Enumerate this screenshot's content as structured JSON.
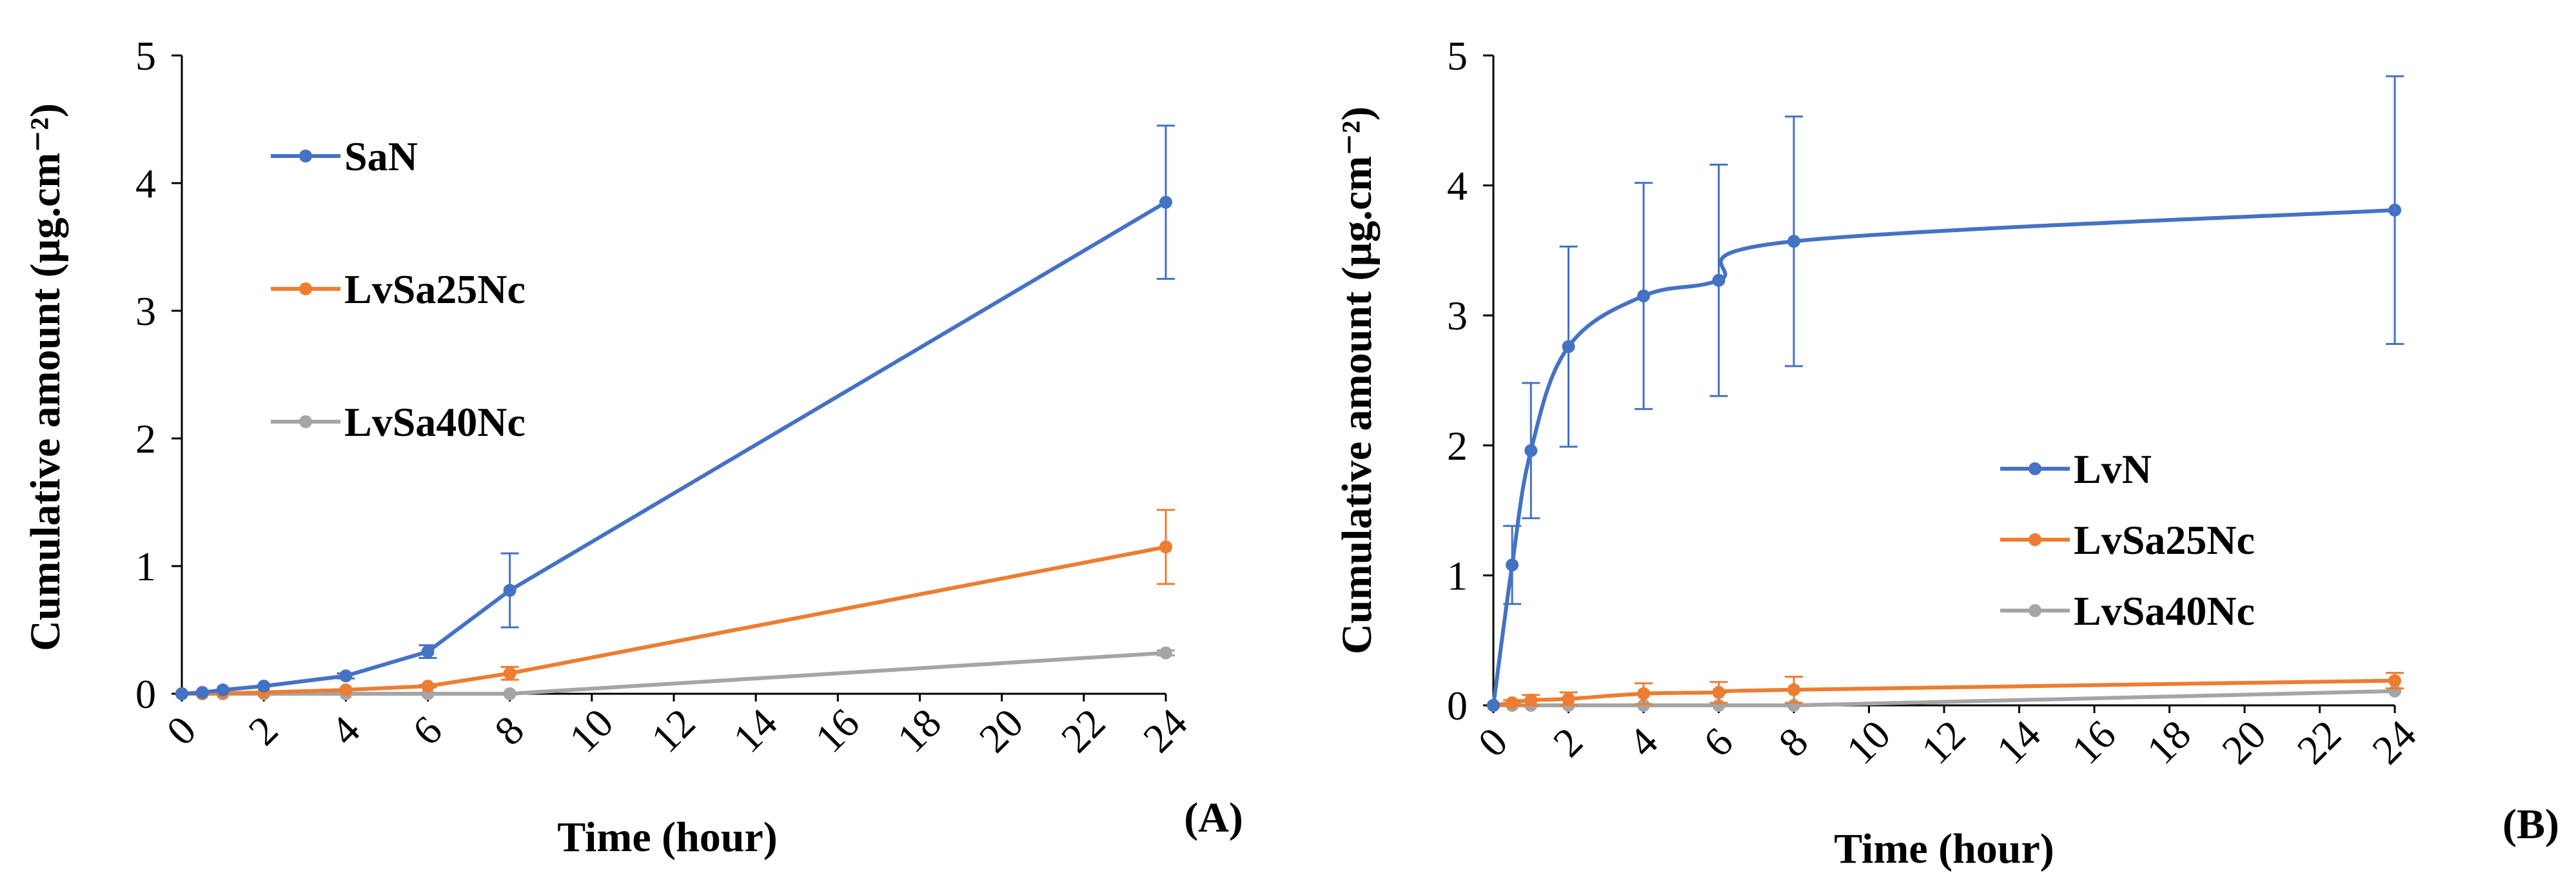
{
  "chart_data": [
    {
      "type": "line",
      "panel": "(A)",
      "xlabel": "Time (hour)",
      "ylabel": "Cumulative amount (µg.cm⁻²)",
      "xlim": [
        0,
        24
      ],
      "ylim": [
        0,
        5
      ],
      "xticks": [
        0,
        2,
        4,
        6,
        8,
        10,
        12,
        14,
        16,
        18,
        20,
        22,
        24
      ],
      "yticks": [
        0,
        1,
        2,
        3,
        4,
        5
      ],
      "grid": false,
      "legend_position": "top-left",
      "series": [
        {
          "name": "SaN",
          "color": "#4472c4",
          "x": [
            0,
            0.5,
            1,
            2,
            4,
            6,
            8,
            24
          ],
          "y": [
            0,
            0.01,
            0.03,
            0.06,
            0.14,
            0.33,
            0.81,
            3.85
          ],
          "err": [
            0,
            0,
            0,
            0,
            0.02,
            0.05,
            0.29,
            0.6
          ]
        },
        {
          "name": "LvSa25Nc",
          "color": "#ed7d31",
          "x": [
            0,
            0.5,
            1,
            2,
            4,
            6,
            8,
            24
          ],
          "y": [
            0,
            0,
            0.005,
            0.01,
            0.03,
            0.06,
            0.16,
            1.15
          ],
          "err": [
            0,
            0,
            0,
            0,
            0,
            0.01,
            0.05,
            0.29
          ]
        },
        {
          "name": "LvSa40Nc",
          "color": "#a5a5a5",
          "x": [
            0,
            0.5,
            1,
            2,
            4,
            6,
            8,
            24
          ],
          "y": [
            0,
            0,
            0,
            0,
            0,
            0,
            0,
            0.32
          ],
          "err": [
            0,
            0,
            0,
            0,
            0,
            0,
            0,
            0.02
          ]
        }
      ]
    },
    {
      "type": "line",
      "panel": "(B)",
      "xlabel": "Time (hour)",
      "ylabel": "Cumulative amount (µg.cm⁻²)",
      "xlim": [
        0,
        24
      ],
      "ylim": [
        0,
        5
      ],
      "xticks": [
        0,
        2,
        4,
        6,
        8,
        10,
        12,
        14,
        16,
        18,
        20,
        22,
        24
      ],
      "yticks": [
        0,
        1,
        2,
        3,
        4,
        5
      ],
      "grid": false,
      "legend_position": "center-right",
      "series": [
        {
          "name": "LvN",
          "color": "#4472c4",
          "x": [
            0,
            0.5,
            1,
            2,
            4,
            6,
            8,
            24
          ],
          "y": [
            0,
            1.08,
            1.96,
            2.76,
            3.15,
            3.27,
            3.57,
            3.81
          ],
          "err": [
            0,
            0.3,
            0.52,
            0.77,
            0.87,
            0.89,
            0.96,
            1.03
          ]
        },
        {
          "name": "LvSa25Nc",
          "color": "#ed7d31",
          "x": [
            0,
            0.5,
            1,
            2,
            4,
            6,
            8,
            24
          ],
          "y": [
            0,
            0.02,
            0.04,
            0.05,
            0.09,
            0.1,
            0.12,
            0.19
          ],
          "err": [
            0,
            0.02,
            0.04,
            0.05,
            0.08,
            0.08,
            0.1,
            0.06
          ]
        },
        {
          "name": "LvSa40Nc",
          "color": "#a5a5a5",
          "x": [
            0,
            0.5,
            1,
            2,
            4,
            6,
            8,
            24
          ],
          "y": [
            0,
            0,
            0,
            0,
            0,
            0,
            0,
            0.11
          ],
          "err": [
            0,
            0,
            0,
            0,
            0,
            0,
            0,
            0
          ]
        }
      ]
    }
  ]
}
